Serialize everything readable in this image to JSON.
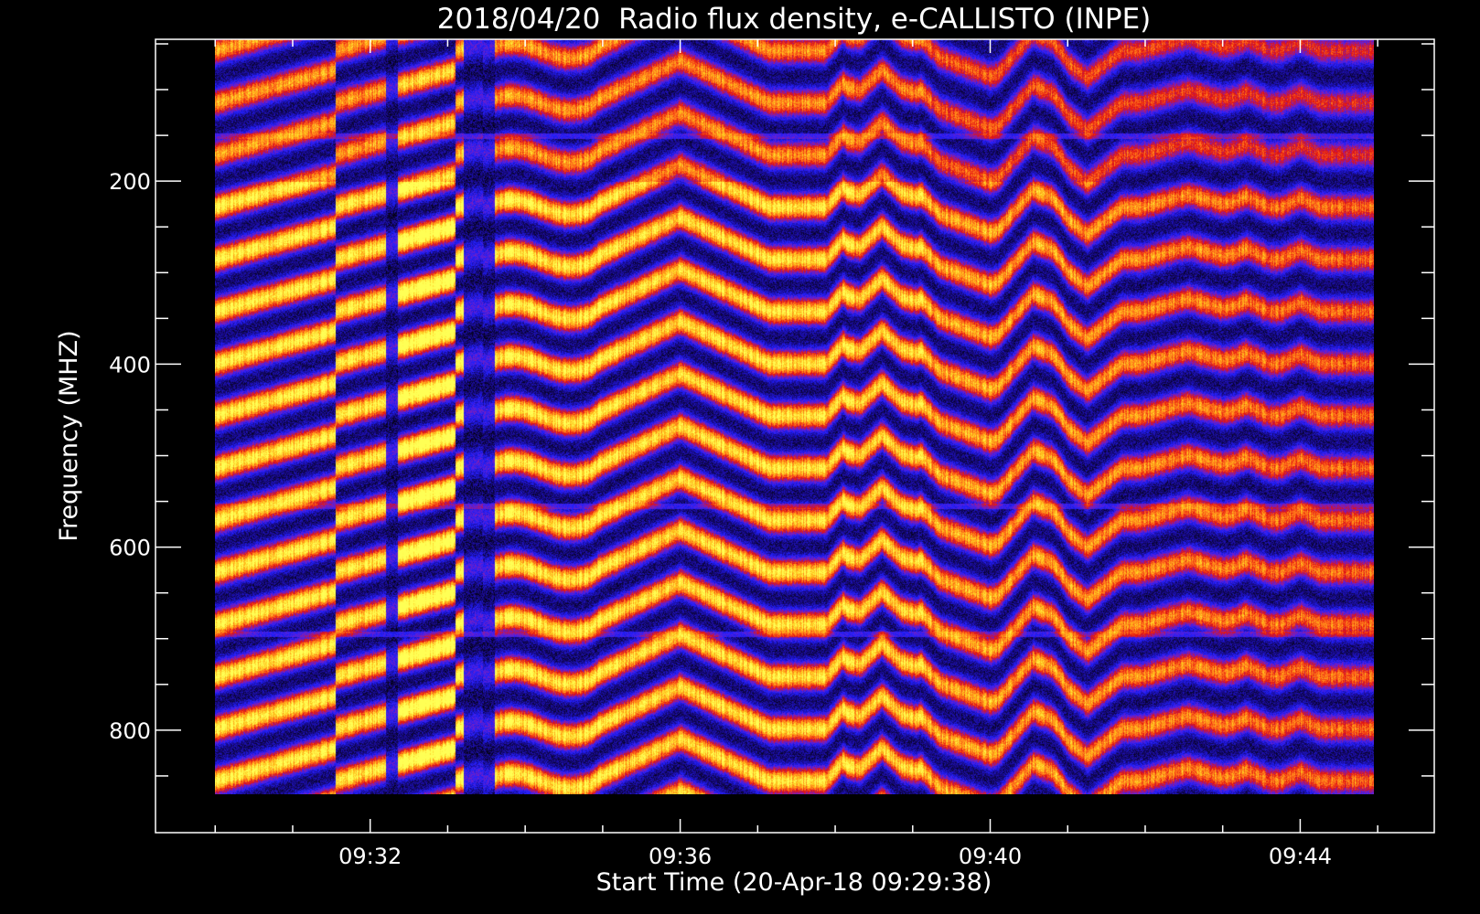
{
  "chart_data": {
    "type": "heatmap",
    "title": "2018/04/20  Radio flux density, e-CALLISTO (INPE)",
    "xlabel": "Start Time (20-Apr-18 09:29:38)",
    "ylabel": "Frequency (MHZ)",
    "x_tick_labels": [
      "09:32",
      "09:36",
      "09:40",
      "09:44"
    ],
    "x_ticks_min": [
      31.95,
      35.95,
      39.95,
      43.95
    ],
    "x_minor_ticks_min": [
      29.95,
      30.95,
      32.95,
      33.95,
      34.95,
      36.95,
      37.95,
      38.95,
      40.95,
      41.95,
      42.95,
      44.95
    ],
    "xlim_min": [
      29.18,
      45.68
    ],
    "data_range_min": [
      29.95,
      44.9
    ],
    "y_tick_labels": [
      "200",
      "400",
      "600",
      "800"
    ],
    "y_ticks": [
      200,
      400,
      600,
      800
    ],
    "y_minor_ticks": [
      50,
      100,
      150,
      250,
      300,
      350,
      450,
      500,
      550,
      650,
      700,
      750,
      850
    ],
    "ylim": [
      45,
      912
    ],
    "freq_range": [
      45,
      870
    ],
    "y_inverted": true,
    "colormap": [
      "#000000",
      "#1a0a8c",
      "#2020ff",
      "#7a1fbf",
      "#e01010",
      "#ff6a1a",
      "#ffc21a",
      "#ffff55"
    ],
    "band_spacing_mhz": 57,
    "vertical_gaps_min": [
      [
        32.15,
        32.3
      ],
      [
        33.15,
        33.55
      ]
    ],
    "rfi_lines_mhz": [
      150,
      555,
      695
    ],
    "grid": false,
    "background": "#000000",
    "axis_color": "#ffffff"
  }
}
